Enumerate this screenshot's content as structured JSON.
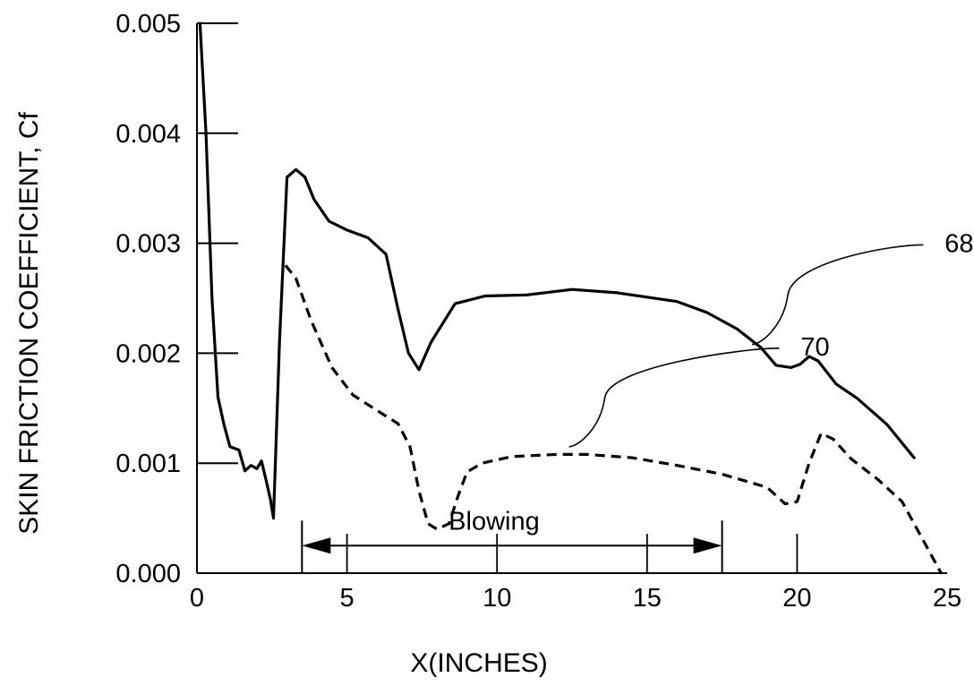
{
  "chart_data": {
    "type": "line",
    "title": "",
    "xlabel": "X(INCHES)",
    "ylabel": "SKIN FRICTION COEFFICIENT, Cf",
    "xlim": [
      0,
      25
    ],
    "ylim": [
      0,
      0.005
    ],
    "x_ticks": [
      "0",
      "5",
      "10",
      "15",
      "20",
      "25"
    ],
    "y_ticks": [
      "0.000",
      "0.001",
      "0.002",
      "0.003",
      "0.004",
      "0.005"
    ],
    "grid": false,
    "series": [
      {
        "name": "68",
        "style": "solid",
        "points": [
          [
            0.1,
            0.005
          ],
          [
            0.3,
            0.004
          ],
          [
            0.5,
            0.0025
          ],
          [
            0.7,
            0.0016
          ],
          [
            0.9,
            0.00135
          ],
          [
            1.1,
            0.00115
          ],
          [
            1.4,
            0.00112
          ],
          [
            1.6,
            0.00093
          ],
          [
            1.8,
            0.00098
          ],
          [
            2.0,
            0.00095
          ],
          [
            2.15,
            0.00102
          ],
          [
            2.3,
            0.00085
          ],
          [
            2.45,
            0.00067
          ],
          [
            2.55,
            0.0005
          ],
          [
            2.75,
            0.0021
          ],
          [
            3.0,
            0.0036
          ],
          [
            3.3,
            0.00367
          ],
          [
            3.6,
            0.0036
          ],
          [
            3.9,
            0.0034
          ],
          [
            4.4,
            0.0032
          ],
          [
            5.0,
            0.00312
          ],
          [
            5.7,
            0.00305
          ],
          [
            6.3,
            0.0029
          ],
          [
            6.7,
            0.0024
          ],
          [
            7.05,
            0.002
          ],
          [
            7.4,
            0.00185
          ],
          [
            7.8,
            0.0021
          ],
          [
            8.6,
            0.00245
          ],
          [
            9.6,
            0.00252
          ],
          [
            11.0,
            0.00253
          ],
          [
            12.5,
            0.00258
          ],
          [
            14.0,
            0.00255
          ],
          [
            16.0,
            0.00247
          ],
          [
            17.0,
            0.00237
          ],
          [
            18.0,
            0.00222
          ],
          [
            18.8,
            0.00205
          ],
          [
            19.3,
            0.00189
          ],
          [
            19.8,
            0.00187
          ],
          [
            20.1,
            0.0019
          ],
          [
            20.4,
            0.00197
          ],
          [
            20.7,
            0.00193
          ],
          [
            21.3,
            0.00172
          ],
          [
            22.0,
            0.00159
          ],
          [
            23.0,
            0.00135
          ],
          [
            23.9,
            0.00105
          ]
        ]
      },
      {
        "name": "70",
        "style": "dashed",
        "points": [
          [
            2.95,
            0.0028
          ],
          [
            3.3,
            0.00268
          ],
          [
            3.8,
            0.0023
          ],
          [
            4.5,
            0.00187
          ],
          [
            5.2,
            0.00162
          ],
          [
            6.0,
            0.00148
          ],
          [
            6.7,
            0.00136
          ],
          [
            7.1,
            0.00115
          ],
          [
            7.4,
            0.00075
          ],
          [
            7.7,
            0.00045
          ],
          [
            8.0,
            0.0004
          ],
          [
            8.4,
            0.00045
          ],
          [
            8.7,
            0.0007
          ],
          [
            9.0,
            0.00092
          ],
          [
            9.5,
            0.001
          ],
          [
            10.5,
            0.00106
          ],
          [
            12.0,
            0.00108
          ],
          [
            13.0,
            0.00108
          ],
          [
            14.5,
            0.00105
          ],
          [
            16.0,
            0.00098
          ],
          [
            17.5,
            0.0009
          ],
          [
            19.0,
            0.00078
          ],
          [
            19.6,
            0.00063
          ],
          [
            20.0,
            0.00065
          ],
          [
            20.4,
            0.001
          ],
          [
            20.8,
            0.00127
          ],
          [
            21.2,
            0.00122
          ],
          [
            21.8,
            0.00104
          ],
          [
            22.7,
            0.00085
          ],
          [
            23.5,
            0.00065
          ],
          [
            24.3,
            0.00025
          ],
          [
            24.8,
            0.0
          ]
        ]
      }
    ],
    "annotations": [
      {
        "label": "68",
        "text_at": [
          25.4,
          0.00292
        ],
        "leader_to": [
          18.5,
          0.00208
        ]
      },
      {
        "label": "70",
        "text_at": [
          20.6,
          0.00198
        ],
        "leader_to": [
          12.4,
          0.00115
        ]
      }
    ],
    "blowing_range": {
      "label": "Blowing",
      "x_start": 3.5,
      "x_end": 17.5,
      "y": 0.00025
    },
    "extra_ticks_x": [
      5,
      10,
      15,
      20
    ],
    "colors": {
      "line": "#000000",
      "background": "#ffffff"
    }
  }
}
